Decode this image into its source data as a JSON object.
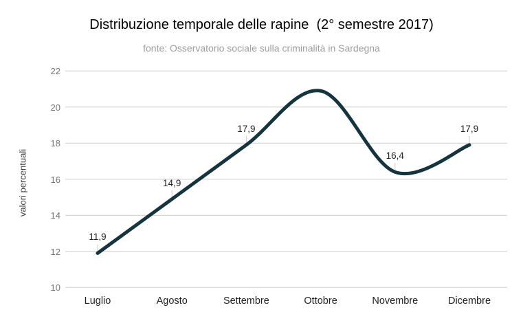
{
  "chart_data": {
    "type": "line",
    "title": "Distribuzione temporale delle rapine  (2° semestre 2017)",
    "subtitle": "fonte: Osservatorio sociale sulla criminalità in Sardegna",
    "xlabel": "",
    "ylabel": "valori percentuali",
    "categories": [
      "Luglio",
      "Agosto",
      "Settembre",
      "Ottobre",
      "Novembre",
      "Dicembre"
    ],
    "series": [
      {
        "name": "valori percentuali",
        "values": [
          11.9,
          14.9,
          17.9,
          20.9,
          16.4,
          17.9
        ],
        "point_labels": [
          "11,9",
          "14,9",
          "17,9",
          "",
          "16,4",
          "17,9"
        ]
      }
    ],
    "ylim": [
      10,
      22
    ],
    "yticks": [
      10,
      12,
      14,
      16,
      18,
      20,
      22
    ],
    "grid": true,
    "legend": "none",
    "smooth": true,
    "note": "Ottobre peak value (≈20,9) has no visible data label in the chart",
    "colors": {
      "line": "#16343E",
      "gridline": "#cccccc",
      "leader_line": "#cccccc",
      "title_text": "#000000",
      "subtitle_text": "#9e9e9e",
      "tick_text": "#757575",
      "category_text": "#212121",
      "point_label_text": "#212121",
      "background": "#ffffff"
    }
  }
}
